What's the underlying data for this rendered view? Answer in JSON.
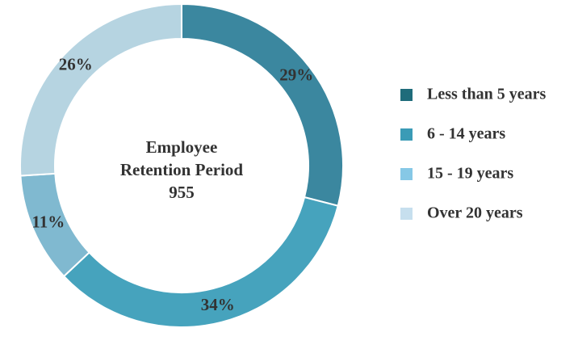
{
  "chart_data": {
    "type": "donut",
    "title": "Employee Retention Period",
    "total": 955,
    "categories": [
      "Less than 5 years",
      "6 - 14 years",
      "15 - 19 years",
      "Over 20 years"
    ],
    "values": [
      29,
      34,
      11,
      26
    ],
    "value_labels": [
      "29%",
      "34%",
      "11%",
      "26%"
    ],
    "colors": [
      "#3b879f",
      "#46a3bd",
      "#80b9d0",
      "#b6d4e1"
    ],
    "legend_colors": [
      "#1f6c7b",
      "#3a9bb6",
      "#86c8e6",
      "#c6dfee"
    ],
    "legend": "right"
  }
}
